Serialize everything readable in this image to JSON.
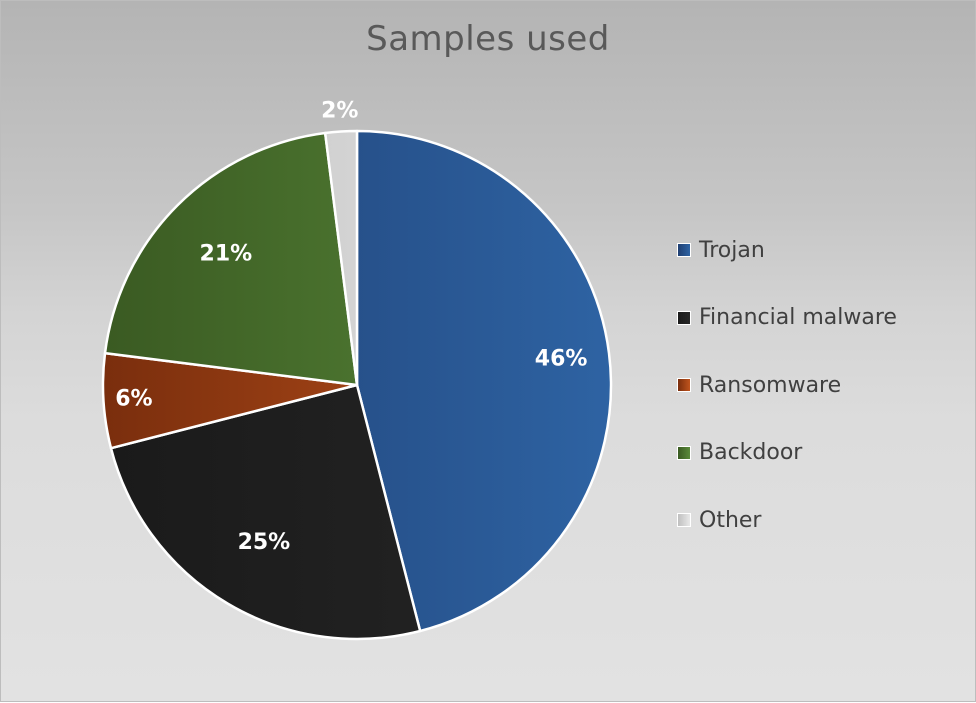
{
  "chart_data": {
    "type": "pie",
    "title": "Samples used",
    "slices": [
      {
        "label": "Trojan",
        "value": 46,
        "display": "46%",
        "color": "#2e63a3",
        "color_dark": "#1f3f72"
      },
      {
        "label": "Financial malware",
        "value": 25,
        "display": "25%",
        "color": "#262626",
        "color_dark": "#1a1a1a"
      },
      {
        "label": "Ransomware",
        "value": 6,
        "display": "6%",
        "color": "#c0541d",
        "color_dark": "#7a2e0d"
      },
      {
        "label": "Backdoor",
        "value": 21,
        "display": "21%",
        "color": "#5a8a3a",
        "color_dark": "#3a5a22"
      },
      {
        "label": "Other",
        "value": 2,
        "display": "2%",
        "color": "#e8e8e8",
        "color_dark": "#bfbfbf"
      }
    ],
    "legend_position": "right",
    "start_angle": "12 o'clock",
    "direction": "clockwise"
  }
}
